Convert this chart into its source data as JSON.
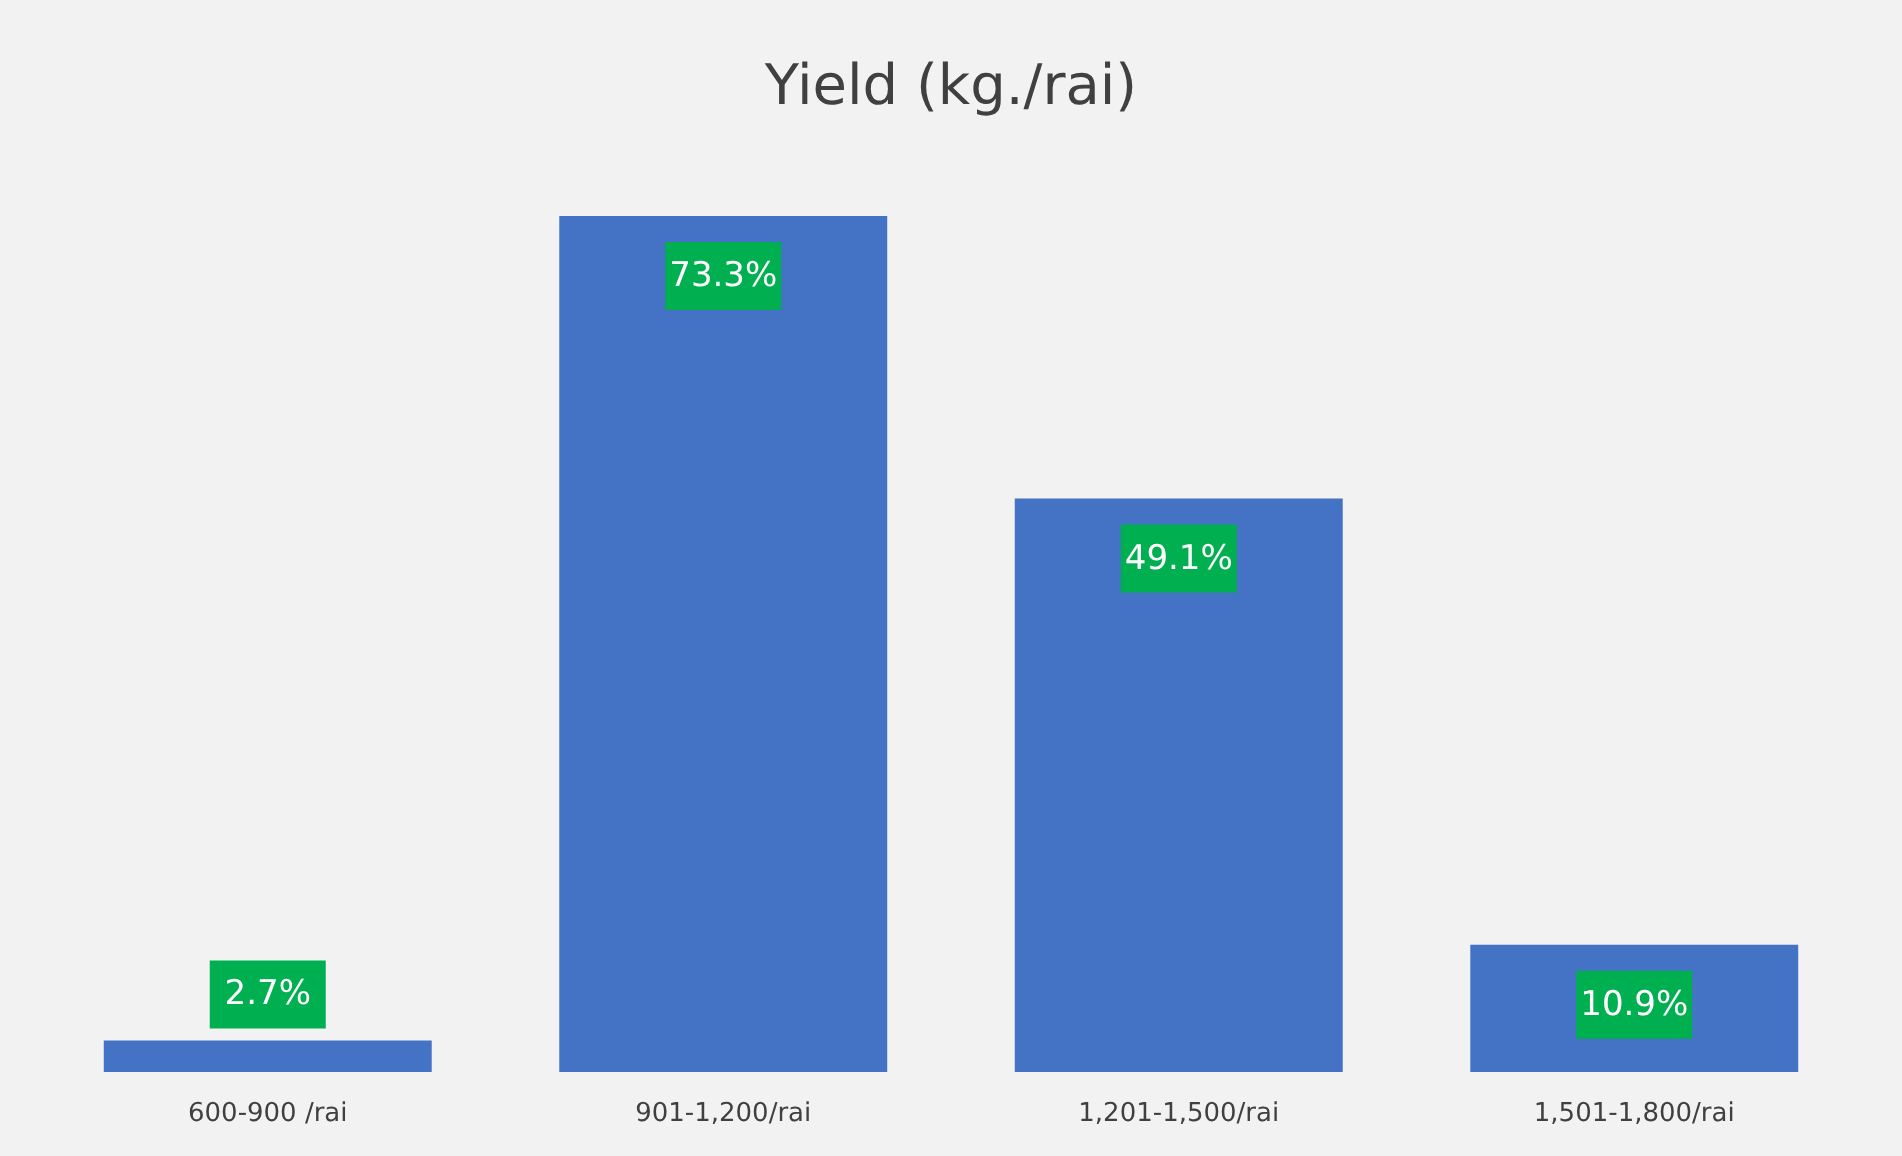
{
  "chart_data": {
    "type": "bar",
    "title": "Yield  (kg./rai)",
    "categories": [
      "600-900 /rai",
      "901-1,200/rai",
      "1,201-1,500/rai",
      "1,501-1,800/rai"
    ],
    "values": [
      2.7,
      73.3,
      49.1,
      10.9
    ],
    "value_labels": [
      "2.7%",
      "73.3%",
      "49.1%",
      "10.9%"
    ],
    "color": "#4472c4",
    "grid": false,
    "tick_labels": "x"
  }
}
